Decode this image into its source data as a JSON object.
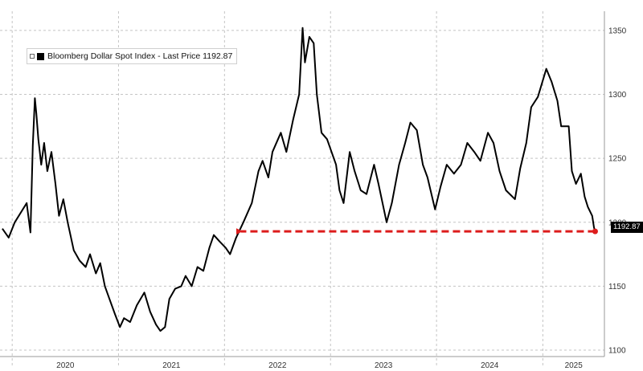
{
  "chart_data": {
    "type": "line",
    "series": [
      {
        "name": "Bloomberg Dollar Spot Index - Last Price",
        "color": "#000000",
        "points": [
          [
            "2019-11-28",
            1195
          ],
          [
            "2019-12-20",
            1188
          ],
          [
            "2020-01-10",
            1200
          ],
          [
            "2020-02-20",
            1215
          ],
          [
            "2020-03-04",
            1192
          ],
          [
            "2020-03-12",
            1260
          ],
          [
            "2020-03-19",
            1297
          ],
          [
            "2020-03-24",
            1285
          ],
          [
            "2020-03-31",
            1265
          ],
          [
            "2020-04-10",
            1245
          ],
          [
            "2020-04-20",
            1262
          ],
          [
            "2020-05-01",
            1240
          ],
          [
            "2020-05-15",
            1255
          ],
          [
            "2020-05-29",
            1230
          ],
          [
            "2020-06-10",
            1205
          ],
          [
            "2020-06-25",
            1218
          ],
          [
            "2020-07-10",
            1200
          ],
          [
            "2020-07-31",
            1178
          ],
          [
            "2020-08-20",
            1170
          ],
          [
            "2020-09-10",
            1165
          ],
          [
            "2020-09-25",
            1175
          ],
          [
            "2020-10-15",
            1160
          ],
          [
            "2020-10-30",
            1168
          ],
          [
            "2020-11-15",
            1150
          ],
          [
            "2020-12-01",
            1140
          ],
          [
            "2020-12-20",
            1128
          ],
          [
            "2021-01-06",
            1118
          ],
          [
            "2021-01-20",
            1125
          ],
          [
            "2021-02-10",
            1122
          ],
          [
            "2021-03-05",
            1135
          ],
          [
            "2021-03-31",
            1145
          ],
          [
            "2021-04-20",
            1130
          ],
          [
            "2021-05-10",
            1120
          ],
          [
            "2021-05-25",
            1115
          ],
          [
            "2021-06-10",
            1118
          ],
          [
            "2021-06-25",
            1140
          ],
          [
            "2021-07-15",
            1148
          ],
          [
            "2021-08-05",
            1150
          ],
          [
            "2021-08-20",
            1158
          ],
          [
            "2021-09-10",
            1150
          ],
          [
            "2021-09-30",
            1165
          ],
          [
            "2021-10-20",
            1162
          ],
          [
            "2021-11-10",
            1180
          ],
          [
            "2021-11-25",
            1190
          ],
          [
            "2021-12-15",
            1185
          ],
          [
            "2022-01-05",
            1180
          ],
          [
            "2022-01-20",
            1175
          ],
          [
            "2022-02-10",
            1188
          ],
          [
            "2022-03-07",
            1200
          ],
          [
            "2022-04-05",
            1215
          ],
          [
            "2022-04-28",
            1240
          ],
          [
            "2022-05-12",
            1248
          ],
          [
            "2022-06-01",
            1235
          ],
          [
            "2022-06-15",
            1255
          ],
          [
            "2022-07-14",
            1270
          ],
          [
            "2022-08-02",
            1255
          ],
          [
            "2022-08-25",
            1280
          ],
          [
            "2022-09-15",
            1300
          ],
          [
            "2022-09-27",
            1352
          ],
          [
            "2022-10-05",
            1325
          ],
          [
            "2022-10-20",
            1345
          ],
          [
            "2022-11-04",
            1340
          ],
          [
            "2022-11-15",
            1300
          ],
          [
            "2022-12-01",
            1270
          ],
          [
            "2022-12-20",
            1265
          ],
          [
            "2023-01-20",
            1245
          ],
          [
            "2023-02-01",
            1225
          ],
          [
            "2023-02-15",
            1215
          ],
          [
            "2023-03-08",
            1255
          ],
          [
            "2023-03-25",
            1240
          ],
          [
            "2023-04-15",
            1225
          ],
          [
            "2023-05-05",
            1222
          ],
          [
            "2023-05-31",
            1245
          ],
          [
            "2023-06-15",
            1230
          ],
          [
            "2023-07-13",
            1200
          ],
          [
            "2023-07-31",
            1215
          ],
          [
            "2023-08-25",
            1245
          ],
          [
            "2023-09-15",
            1262
          ],
          [
            "2023-10-03",
            1278
          ],
          [
            "2023-10-25",
            1272
          ],
          [
            "2023-11-15",
            1245
          ],
          [
            "2023-12-01",
            1235
          ],
          [
            "2023-12-27",
            1210
          ],
          [
            "2024-01-15",
            1228
          ],
          [
            "2024-02-05",
            1245
          ],
          [
            "2024-03-01",
            1238
          ],
          [
            "2024-03-25",
            1245
          ],
          [
            "2024-04-16",
            1262
          ],
          [
            "2024-05-10",
            1255
          ],
          [
            "2024-05-31",
            1248
          ],
          [
            "2024-06-26",
            1270
          ],
          [
            "2024-07-15",
            1262
          ],
          [
            "2024-08-05",
            1240
          ],
          [
            "2024-08-27",
            1225
          ],
          [
            "2024-09-27",
            1218
          ],
          [
            "2024-10-15",
            1242
          ],
          [
            "2024-11-05",
            1262
          ],
          [
            "2024-11-22",
            1290
          ],
          [
            "2024-12-15",
            1298
          ],
          [
            "2025-01-13",
            1320
          ],
          [
            "2025-01-31",
            1310
          ],
          [
            "2025-02-20",
            1295
          ],
          [
            "2025-03-05",
            1275
          ],
          [
            "2025-03-31",
            1275
          ],
          [
            "2025-04-11",
            1240
          ],
          [
            "2025-04-25",
            1230
          ],
          [
            "2025-05-12",
            1238
          ],
          [
            "2025-05-25",
            1220
          ],
          [
            "2025-06-05",
            1212
          ],
          [
            "2025-06-20",
            1205
          ],
          [
            "2025-06-26",
            1196
          ],
          [
            "2025-06-30",
            1192.87
          ]
        ]
      }
    ],
    "x_axis": {
      "type": "date",
      "range": [
        "2019-11-20",
        "2025-08-01"
      ],
      "tick_labels": [
        "2020",
        "2021",
        "2022",
        "2023",
        "2024",
        "2025"
      ]
    },
    "y_axis": {
      "range": [
        1100,
        1360
      ],
      "position": "right",
      "tick_values": [
        1100,
        1150,
        1200,
        1250,
        1300,
        1350
      ]
    },
    "legend": {
      "text": "Bloomberg Dollar Spot Index - Last Price 1192.87",
      "placement": "top-left"
    },
    "last_value_label": "1192.87",
    "annotation": {
      "type": "dashed-arrow",
      "color": "#dd1c1c",
      "from": [
        "2025-06-30",
        1192.87
      ],
      "to": [
        "2022-02-10",
        1192.87
      ]
    },
    "grid": {
      "horizontal": true,
      "vertical": true,
      "style": "dashed"
    },
    "background": "#ffffff"
  }
}
